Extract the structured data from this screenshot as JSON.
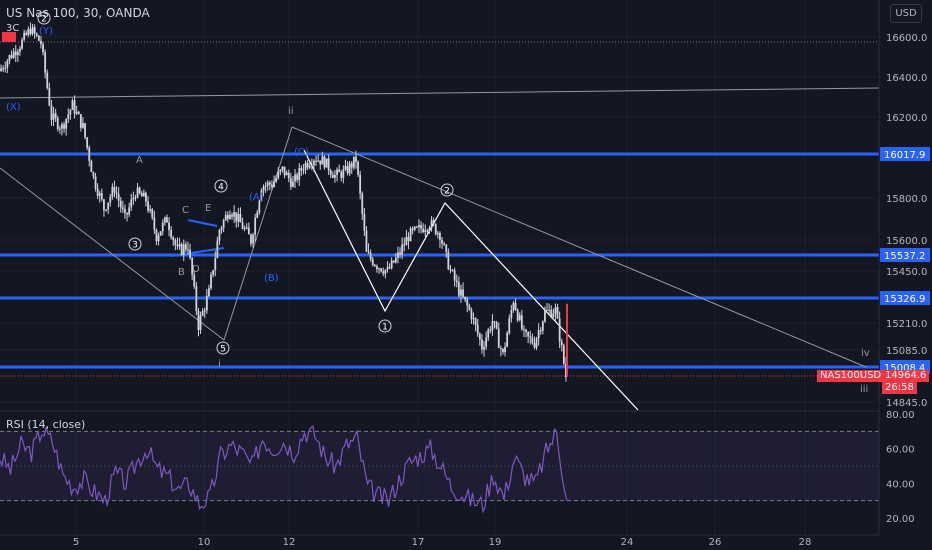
{
  "header": {
    "title": "US Nas 100, 30, OANDA",
    "sub": "3C"
  },
  "currency_button": "USD",
  "colors": {
    "bg": "#131722",
    "candle": "#d1d4dc",
    "hline": "#2962ff",
    "rsi": "#7e57c2",
    "price": "#f23645",
    "label_blue": "#2962ff"
  },
  "chart_data": {
    "type": "candlestick",
    "title": "US Nas 100, 30, OANDA",
    "symbol": "NAS100USD",
    "y_ticks": [
      16600,
      16400,
      16200,
      15800,
      15600,
      15450,
      15210,
      15085,
      14845
    ],
    "y_labels": [
      "16600.0",
      "16400.0",
      "16200.0",
      "15800.0",
      "15600.0",
      "15450.0",
      "15210.0",
      "15085.0",
      "14845.0"
    ],
    "x_labels": [
      "5",
      "10",
      "12",
      "17",
      "19",
      "24",
      "26",
      "28"
    ],
    "horizontal_levels": [
      {
        "value": 16017.9,
        "label": "16017.9"
      },
      {
        "value": 15537.2,
        "label": "15537.2"
      },
      {
        "value": 15326.9,
        "label": "15326.9"
      },
      {
        "value": 15008.4,
        "label": "15008.4"
      }
    ],
    "current_price": {
      "symbol": "NAS100USD",
      "value": "14964.6",
      "countdown": "26:58"
    },
    "close_path": [
      [
        0,
        16430
      ],
      [
        1,
        16500
      ],
      [
        2,
        16560
      ],
      [
        3,
        16640
      ],
      [
        4,
        16570
      ],
      [
        5,
        16200
      ],
      [
        6,
        16150
      ],
      [
        7,
        16260
      ],
      [
        8,
        16150
      ],
      [
        9,
        15900
      ],
      [
        10,
        15750
      ],
      [
        11,
        15850
      ],
      [
        12,
        15700
      ],
      [
        13,
        15830
      ],
      [
        14,
        15790
      ],
      [
        15,
        15620
      ],
      [
        16,
        15700
      ],
      [
        17,
        15550
      ],
      [
        18,
        15580
      ],
      [
        19,
        15200
      ],
      [
        20,
        15350
      ],
      [
        21,
        15650
      ],
      [
        22,
        15750
      ],
      [
        23,
        15680
      ],
      [
        24,
        15600
      ],
      [
        25,
        15860
      ],
      [
        26,
        15870
      ],
      [
        27,
        15940
      ],
      [
        28,
        15870
      ],
      [
        29,
        15960
      ],
      [
        30,
        16000
      ],
      [
        31,
        15980
      ],
      [
        32,
        15910
      ],
      [
        33,
        15930
      ],
      [
        34,
        15990
      ],
      [
        35,
        15540
      ],
      [
        36,
        15480
      ],
      [
        37,
        15450
      ],
      [
        38,
        15530
      ],
      [
        39,
        15620
      ],
      [
        40,
        15650
      ],
      [
        41,
        15680
      ],
      [
        42,
        15630
      ],
      [
        43,
        15450
      ],
      [
        44,
        15340
      ],
      [
        45,
        15250
      ],
      [
        46,
        15100
      ],
      [
        47,
        15220
      ],
      [
        48,
        15060
      ],
      [
        49,
        15320
      ],
      [
        50,
        15150
      ],
      [
        51,
        15120
      ],
      [
        52,
        15260
      ],
      [
        53,
        15270
      ],
      [
        54,
        14964.6
      ]
    ],
    "rsi": {
      "label": "RSI (14, close)",
      "levels": [
        "80.00",
        "60.00",
        "40.00",
        "20.00"
      ],
      "values": [
        55,
        48,
        62,
        58,
        71,
        64,
        45,
        38,
        42,
        35,
        30,
        46,
        40,
        52,
        60,
        48,
        44,
        36,
        40,
        28,
        32,
        56,
        62,
        58,
        50,
        66,
        60,
        64,
        58,
        70,
        68,
        55,
        50,
        62,
        66,
        38,
        33,
        30,
        42,
        52,
        56,
        60,
        50,
        38,
        34,
        30,
        28,
        45,
        32,
        55,
        44,
        40,
        58,
        70,
        30
      ]
    },
    "annotations": {
      "waves": [
        "(X)",
        "(Y)",
        "ii",
        "(C)",
        "(A)",
        "(B)",
        "A",
        "C",
        "E",
        "B",
        "D",
        "i",
        "iv",
        "iii"
      ],
      "circled": [
        "1",
        "2",
        "3",
        "4",
        "5",
        "2"
      ]
    }
  }
}
